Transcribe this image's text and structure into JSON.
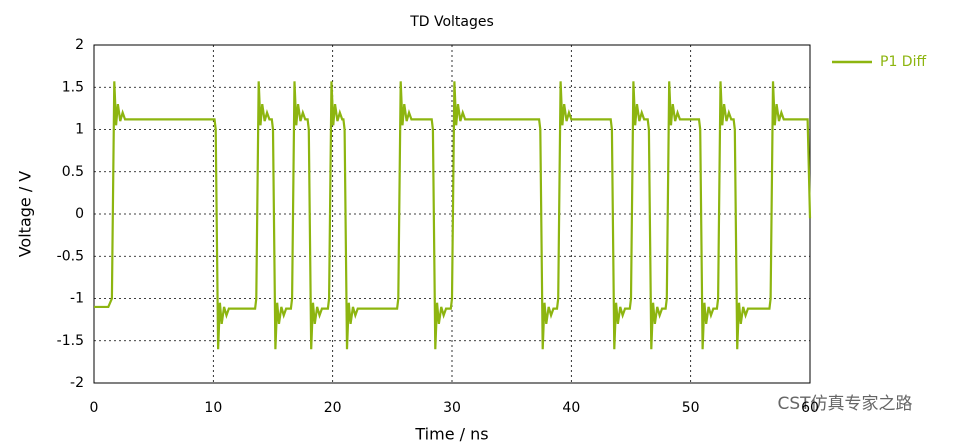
{
  "chart_data": {
    "type": "line",
    "title": "TD Voltages",
    "xlabel": "Time / ns",
    "ylabel": "Voltage / V",
    "xlim": [
      0,
      60
    ],
    "ylim": [
      -2,
      2
    ],
    "xticks": [
      0,
      10,
      20,
      30,
      40,
      50,
      60
    ],
    "yticks": [
      -2,
      -1.5,
      -1,
      -0.5,
      0,
      0.5,
      1,
      1.5,
      2
    ],
    "grid": true,
    "legend": "right",
    "watermark": "CST仿真专家之路",
    "series": [
      {
        "name": "P1 Diff",
        "color": "#8db510",
        "x": [
          0,
          1.2,
          1.5,
          1.7,
          1.85,
          2.0,
          2.2,
          2.4,
          2.6,
          10.1,
          10.2,
          10.4,
          10.55,
          10.7,
          10.9,
          11.1,
          11.3,
          13.5,
          13.6,
          13.8,
          13.95,
          14.1,
          14.3,
          14.5,
          14.7,
          14.9,
          15.0,
          15.2,
          15.35,
          15.5,
          15.7,
          15.9,
          16.1,
          16.5,
          16.6,
          16.8,
          16.95,
          17.1,
          17.3,
          17.5,
          17.7,
          17.9,
          18.0,
          18.2,
          18.35,
          18.5,
          18.7,
          18.9,
          19.1,
          19.6,
          19.7,
          19.9,
          20.05,
          20.2,
          20.4,
          20.6,
          20.8,
          20.9,
          21.0,
          21.2,
          21.35,
          21.5,
          21.7,
          21.9,
          22.1,
          25.4,
          25.5,
          25.7,
          25.85,
          26.0,
          26.2,
          26.4,
          26.6,
          28.3,
          28.4,
          28.6,
          28.75,
          28.9,
          29.1,
          29.3,
          29.5,
          29.9,
          30.0,
          30.2,
          30.35,
          30.5,
          30.7,
          30.9,
          31.1,
          37.3,
          37.4,
          37.6,
          37.75,
          37.9,
          38.1,
          38.3,
          38.5,
          38.8,
          38.9,
          39.1,
          39.25,
          39.4,
          39.6,
          39.8,
          40.0,
          43.3,
          43.4,
          43.6,
          43.75,
          43.9,
          44.1,
          44.3,
          44.5,
          44.9,
          45.0,
          45.2,
          45.35,
          45.5,
          45.7,
          45.9,
          46.1,
          46.4,
          46.5,
          46.7,
          46.85,
          47.0,
          47.2,
          47.4,
          47.6,
          47.9,
          48.0,
          48.2,
          48.35,
          48.5,
          48.7,
          48.9,
          49.1,
          50.7,
          50.8,
          51.0,
          51.15,
          51.3,
          51.5,
          51.7,
          51.9,
          52.2,
          52.3,
          52.5,
          52.65,
          52.8,
          53.0,
          53.2,
          53.4,
          53.6,
          53.7,
          53.9,
          54.05,
          54.2,
          54.4,
          54.6,
          54.8,
          56.6,
          56.7,
          56.9,
          57.05,
          57.2,
          57.4,
          57.6,
          57.8,
          59.8,
          60
        ],
        "values": [
          -1.1,
          -1.1,
          -1.0,
          1.57,
          1.05,
          1.3,
          1.1,
          1.2,
          1.12,
          1.12,
          1.0,
          -1.6,
          -1.05,
          -1.3,
          -1.1,
          -1.2,
          -1.12,
          -1.12,
          -1.0,
          1.57,
          1.05,
          1.3,
          1.1,
          1.2,
          1.12,
          1.12,
          1.0,
          -1.6,
          -1.05,
          -1.3,
          -1.1,
          -1.2,
          -1.12,
          -1.12,
          -1.0,
          1.57,
          1.05,
          1.3,
          1.1,
          1.2,
          1.12,
          1.12,
          1.0,
          -1.6,
          -1.05,
          -1.3,
          -1.1,
          -1.2,
          -1.12,
          -1.12,
          -1.0,
          1.57,
          1.05,
          1.3,
          1.1,
          1.2,
          1.12,
          1.12,
          1.0,
          -1.6,
          -1.05,
          -1.3,
          -1.1,
          -1.2,
          -1.12,
          -1.12,
          -1.0,
          1.57,
          1.05,
          1.3,
          1.1,
          1.2,
          1.12,
          1.12,
          1.0,
          -1.6,
          -1.05,
          -1.3,
          -1.1,
          -1.2,
          -1.12,
          -1.12,
          -1.0,
          1.57,
          1.05,
          1.3,
          1.1,
          1.2,
          1.12,
          1.12,
          1.0,
          -1.6,
          -1.05,
          -1.3,
          -1.1,
          -1.2,
          -1.12,
          -1.12,
          -1.0,
          1.57,
          1.05,
          1.3,
          1.1,
          1.2,
          1.12,
          1.12,
          1.0,
          -1.6,
          -1.05,
          -1.3,
          -1.1,
          -1.2,
          -1.12,
          -1.12,
          -1.0,
          1.57,
          1.05,
          1.3,
          1.1,
          1.2,
          1.12,
          1.12,
          1.0,
          -1.6,
          -1.05,
          -1.3,
          -1.1,
          -1.2,
          -1.12,
          -1.12,
          -1.0,
          1.57,
          1.05,
          1.3,
          1.1,
          1.2,
          1.12,
          1.12,
          1.0,
          -1.6,
          -1.05,
          -1.3,
          -1.1,
          -1.2,
          -1.12,
          -1.12,
          -1.0,
          1.57,
          1.05,
          1.3,
          1.1,
          1.2,
          1.12,
          1.12,
          1.0,
          -1.6,
          -1.05,
          -1.3,
          -1.1,
          -1.2,
          -1.12,
          -1.12,
          -1.0,
          1.57,
          1.05,
          1.3,
          1.1,
          1.2,
          1.12,
          1.12,
          -0.05
        ]
      }
    ]
  }
}
